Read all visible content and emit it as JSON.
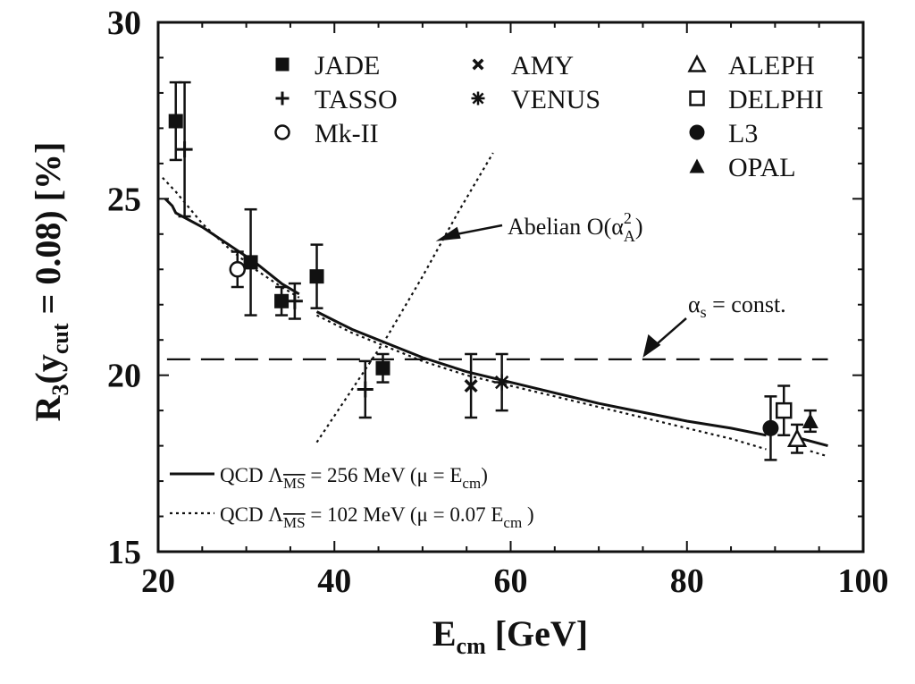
{
  "chart_data": {
    "type": "scatter",
    "xlim": [
      20,
      100
    ],
    "ylim": [
      15,
      30
    ],
    "x_ticks": [
      20,
      40,
      60,
      80,
      100
    ],
    "y_ticks": [
      15,
      20,
      25,
      30
    ],
    "xlabel": {
      "main": "E",
      "sub": "cm",
      "unit": " [GeV]"
    },
    "ylabel": {
      "pre": "R",
      "sub1": "3",
      "open": "(y",
      "sub2": "cut",
      "post": " = 0.08) [%]"
    },
    "series": [
      {
        "name": "JADE",
        "marker": "filled-square",
        "points": [
          {
            "x": 22,
            "y": 27.2,
            "err": 1.1
          },
          {
            "x": 30.5,
            "y": 23.2,
            "err": 1.5
          },
          {
            "x": 34,
            "y": 22.1,
            "err": 0.4
          },
          {
            "x": 38,
            "y": 22.8,
            "err": 0.9
          },
          {
            "x": 45.5,
            "y": 20.2,
            "err": 0.4
          }
        ]
      },
      {
        "name": "TASSO",
        "marker": "plus",
        "points": [
          {
            "x": 23,
            "y": 26.4,
            "err": 1.9
          },
          {
            "x": 35.5,
            "y": 22.1,
            "err": 0.5
          },
          {
            "x": 43.5,
            "y": 19.6,
            "err": 0.8
          }
        ]
      },
      {
        "name": "Mk-II",
        "marker": "open-circle",
        "points": [
          {
            "x": 29,
            "y": 23.0,
            "err": 0.5
          }
        ]
      },
      {
        "name": "AMY",
        "marker": "cross",
        "points": [
          {
            "x": 55.5,
            "y": 19.7,
            "err": 0.9
          }
        ]
      },
      {
        "name": "VENUS",
        "marker": "asterisk",
        "points": [
          {
            "x": 59,
            "y": 19.8,
            "err": 0.8
          }
        ]
      },
      {
        "name": "ALEPH",
        "marker": "open-triangle",
        "points": [
          {
            "x": 92.5,
            "y": 18.2,
            "err": 0.4
          }
        ]
      },
      {
        "name": "DELPHI",
        "marker": "open-square",
        "points": [
          {
            "x": 91,
            "y": 19.0,
            "err": 0.7
          }
        ]
      },
      {
        "name": "L3",
        "marker": "filled-circle",
        "points": [
          {
            "x": 89.5,
            "y": 18.5,
            "err": 0.9
          }
        ]
      },
      {
        "name": "OPAL",
        "marker": "filled-triangle",
        "points": [
          {
            "x": 94,
            "y": 18.7,
            "err": 0.3
          }
        ]
      }
    ],
    "curves": [
      {
        "name": "QCD 256 MeV",
        "style": "solid",
        "segments": [
          [
            [
              20.8,
              25.0
            ],
            [
              21.6,
              24.8
            ],
            [
              22.0,
              24.6
            ],
            [
              25,
              24.2
            ],
            [
              28,
              23.7
            ],
            [
              31,
              23.2
            ],
            [
              34,
              22.6
            ],
            [
              36,
              22.3
            ]
          ],
          [
            [
              38,
              21.8
            ],
            [
              42,
              21.3
            ],
            [
              46,
              20.9
            ],
            [
              50,
              20.5
            ],
            [
              55,
              20.1
            ],
            [
              60,
              19.8
            ],
            [
              65,
              19.5
            ],
            [
              70,
              19.2
            ],
            [
              75,
              18.95
            ],
            [
              80,
              18.7
            ],
            [
              85,
              18.5
            ],
            [
              89,
              18.3
            ]
          ],
          [
            [
              93,
              18.2
            ],
            [
              96,
              18.0
            ]
          ]
        ]
      },
      {
        "name": "QCD 102 MeV",
        "style": "dotted",
        "segments": [
          [
            [
              20.5,
              25.6
            ],
            [
              22,
              25.2
            ],
            [
              25,
              24.3
            ],
            [
              28,
              23.6
            ],
            [
              31,
              23.0
            ],
            [
              34,
              22.5
            ],
            [
              36,
              22.2
            ]
          ],
          [
            [
              38,
              21.7
            ],
            [
              42,
              21.2
            ],
            [
              46,
              20.8
            ],
            [
              50,
              20.4
            ],
            [
              55,
              20.0
            ],
            [
              60,
              19.7
            ],
            [
              65,
              19.4
            ],
            [
              70,
              19.1
            ],
            [
              75,
              18.8
            ],
            [
              80,
              18.5
            ],
            [
              85,
              18.2
            ],
            [
              89,
              17.9
            ]
          ],
          [
            [
              94,
              17.85
            ],
            [
              96,
              17.7
            ]
          ]
        ]
      },
      {
        "name": "Abelian",
        "style": "dotted",
        "segments": [
          [
            [
              38,
              18.1
            ],
            [
              42,
              19.6
            ],
            [
              46,
              21.1
            ],
            [
              50,
              22.8
            ],
            [
              54,
              24.6
            ],
            [
              58,
              26.3
            ]
          ]
        ]
      },
      {
        "name": "alpha_s const",
        "style": "dashed",
        "segments": [
          [
            [
              21,
              20.45
            ],
            [
              96,
              20.45
            ]
          ]
        ]
      }
    ],
    "annotations": {
      "abelian": {
        "pre": "Abelian O(α",
        "sup": "2",
        "sub": "A",
        "post": ")",
        "arrow_to": [
          51.5,
          23.8
        ]
      },
      "alpha_s": {
        "main": "α",
        "sub": "s",
        "post": " = const.",
        "arrow_to": [
          75,
          20.5
        ]
      }
    },
    "legend_lines": [
      {
        "style": "solid",
        "text": "QCD  Λ",
        "ms": "MS",
        "rest": " = 256 MeV (μ  = E",
        "sub": "cm",
        "end": ")"
      },
      {
        "style": "dotted",
        "text": "QCD  Λ",
        "ms": "MS",
        "rest": " = 102 MeV (μ  = 0.07 E",
        "sub": "cm",
        "end": "  )"
      }
    ]
  }
}
